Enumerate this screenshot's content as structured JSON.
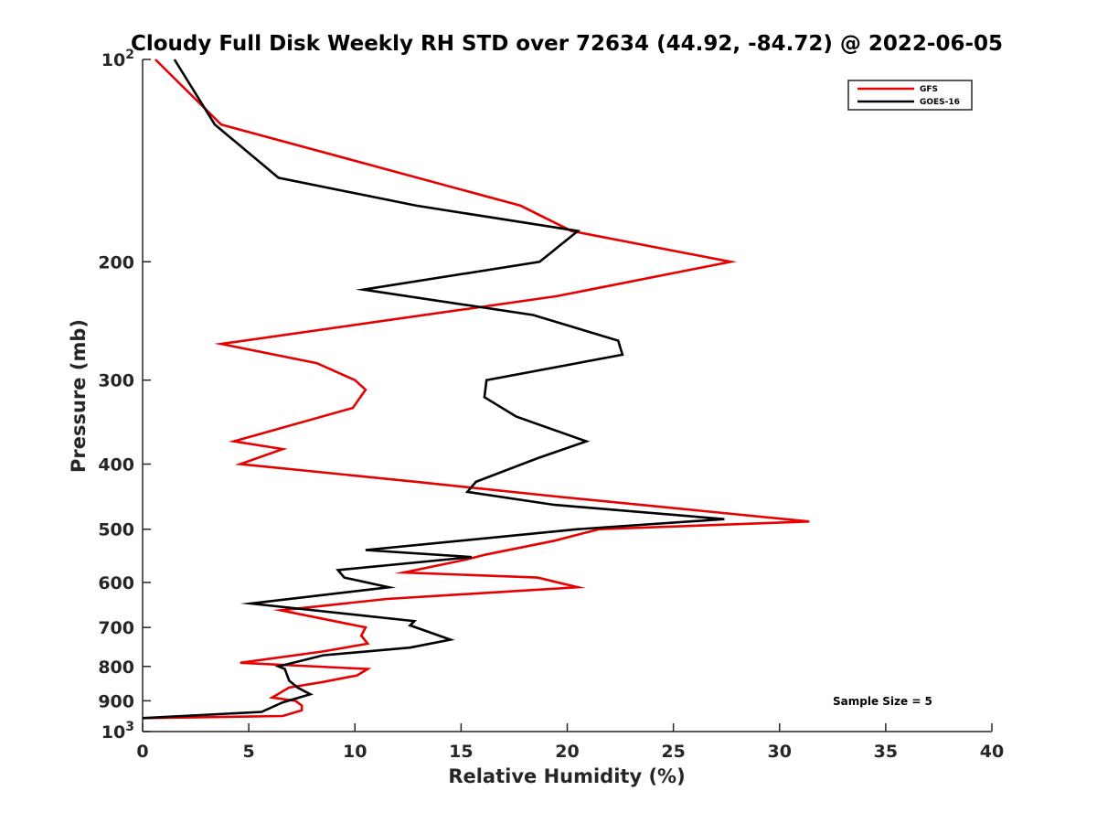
{
  "chart_data": {
    "type": "line",
    "title": "Cloudy Full Disk Weekly RH STD over 72634 (44.92, -84.72) @ 2022-06-05",
    "xlabel": "Relative Humidity (%)",
    "ylabel": "Pressure (mb)",
    "xlim": [
      0,
      40
    ],
    "ylim": [
      100,
      1000
    ],
    "y_scale": "log",
    "y_reversed": true,
    "grid": false,
    "legend_position": "top-right",
    "x_ticks": [
      "0",
      "5",
      "10",
      "15",
      "20",
      "25",
      "30",
      "35",
      "40"
    ],
    "y_ticks": [
      {
        "value": 100,
        "base": "10",
        "exp": "2"
      },
      {
        "value": 200,
        "base": "200",
        "exp": ""
      },
      {
        "value": 300,
        "base": "300",
        "exp": ""
      },
      {
        "value": 400,
        "base": "400",
        "exp": ""
      },
      {
        "value": 500,
        "base": "500",
        "exp": ""
      },
      {
        "value": 600,
        "base": "600",
        "exp": ""
      },
      {
        "value": 700,
        "base": "700",
        "exp": ""
      },
      {
        "value": 800,
        "base": "800",
        "exp": ""
      },
      {
        "value": 900,
        "base": "900",
        "exp": ""
      },
      {
        "value": 1000,
        "base": "10",
        "exp": "3"
      }
    ],
    "annotation": "Sample Size = 5",
    "series": [
      {
        "name": "GFS",
        "color": "#e60000",
        "points": [
          [
            0.6,
            100
          ],
          [
            3.7,
            125
          ],
          [
            17.8,
            165
          ],
          [
            20.2,
            180
          ],
          [
            27.7,
            200
          ],
          [
            19.5,
            225
          ],
          [
            3.7,
            265
          ],
          [
            8.2,
            283
          ],
          [
            10.0,
            300
          ],
          [
            10.5,
            310
          ],
          [
            9.9,
            330
          ],
          [
            4.3,
            370
          ],
          [
            6.6,
            380
          ],
          [
            4.6,
            400
          ],
          [
            12.9,
            425
          ],
          [
            19.5,
            447
          ],
          [
            31.4,
            487
          ],
          [
            21.5,
            500
          ],
          [
            19.4,
            520
          ],
          [
            16.2,
            545
          ],
          [
            15.2,
            555
          ],
          [
            12.3,
            580
          ],
          [
            18.6,
            590
          ],
          [
            20.5,
            610
          ],
          [
            11.5,
            635
          ],
          [
            6.5,
            660
          ],
          [
            10.5,
            700
          ],
          [
            10.3,
            720
          ],
          [
            10.6,
            740
          ],
          [
            8.5,
            760
          ],
          [
            4.6,
            790
          ],
          [
            10.6,
            807
          ],
          [
            10.1,
            825
          ],
          [
            8.4,
            845
          ],
          [
            6.9,
            860
          ],
          [
            6.1,
            890
          ],
          [
            7.2,
            900
          ],
          [
            7.5,
            915
          ],
          [
            7.5,
            930
          ],
          [
            6.6,
            948
          ],
          [
            0.0,
            955
          ]
        ]
      },
      {
        "name": "GOES-16",
        "color": "#000000",
        "points": [
          [
            1.5,
            100
          ],
          [
            3.4,
            125
          ],
          [
            6.4,
            150
          ],
          [
            12.9,
            165
          ],
          [
            20.5,
            180
          ],
          [
            18.7,
            200
          ],
          [
            10.4,
            220
          ],
          [
            18.4,
            240
          ],
          [
            22.4,
            262
          ],
          [
            22.6,
            275
          ],
          [
            16.2,
            300
          ],
          [
            16.1,
            318
          ],
          [
            17.6,
            340
          ],
          [
            20.9,
            370
          ],
          [
            18.6,
            392
          ],
          [
            15.7,
            425
          ],
          [
            15.3,
            440
          ],
          [
            19.4,
            460
          ],
          [
            27.4,
            483
          ],
          [
            20.5,
            500
          ],
          [
            10.5,
            537
          ],
          [
            15.5,
            550
          ],
          [
            9.2,
            575
          ],
          [
            9.5,
            590
          ],
          [
            11.6,
            610
          ],
          [
            5.1,
            645
          ],
          [
            12.8,
            685
          ],
          [
            12.6,
            695
          ],
          [
            14.5,
            730
          ],
          [
            12.6,
            750
          ],
          [
            8.5,
            770
          ],
          [
            6.4,
            800
          ],
          [
            6.7,
            807
          ],
          [
            6.9,
            840
          ],
          [
            7.3,
            860
          ],
          [
            7.9,
            880
          ],
          [
            6.6,
            905
          ],
          [
            5.6,
            935
          ],
          [
            0.0,
            955
          ]
        ]
      }
    ]
  }
}
